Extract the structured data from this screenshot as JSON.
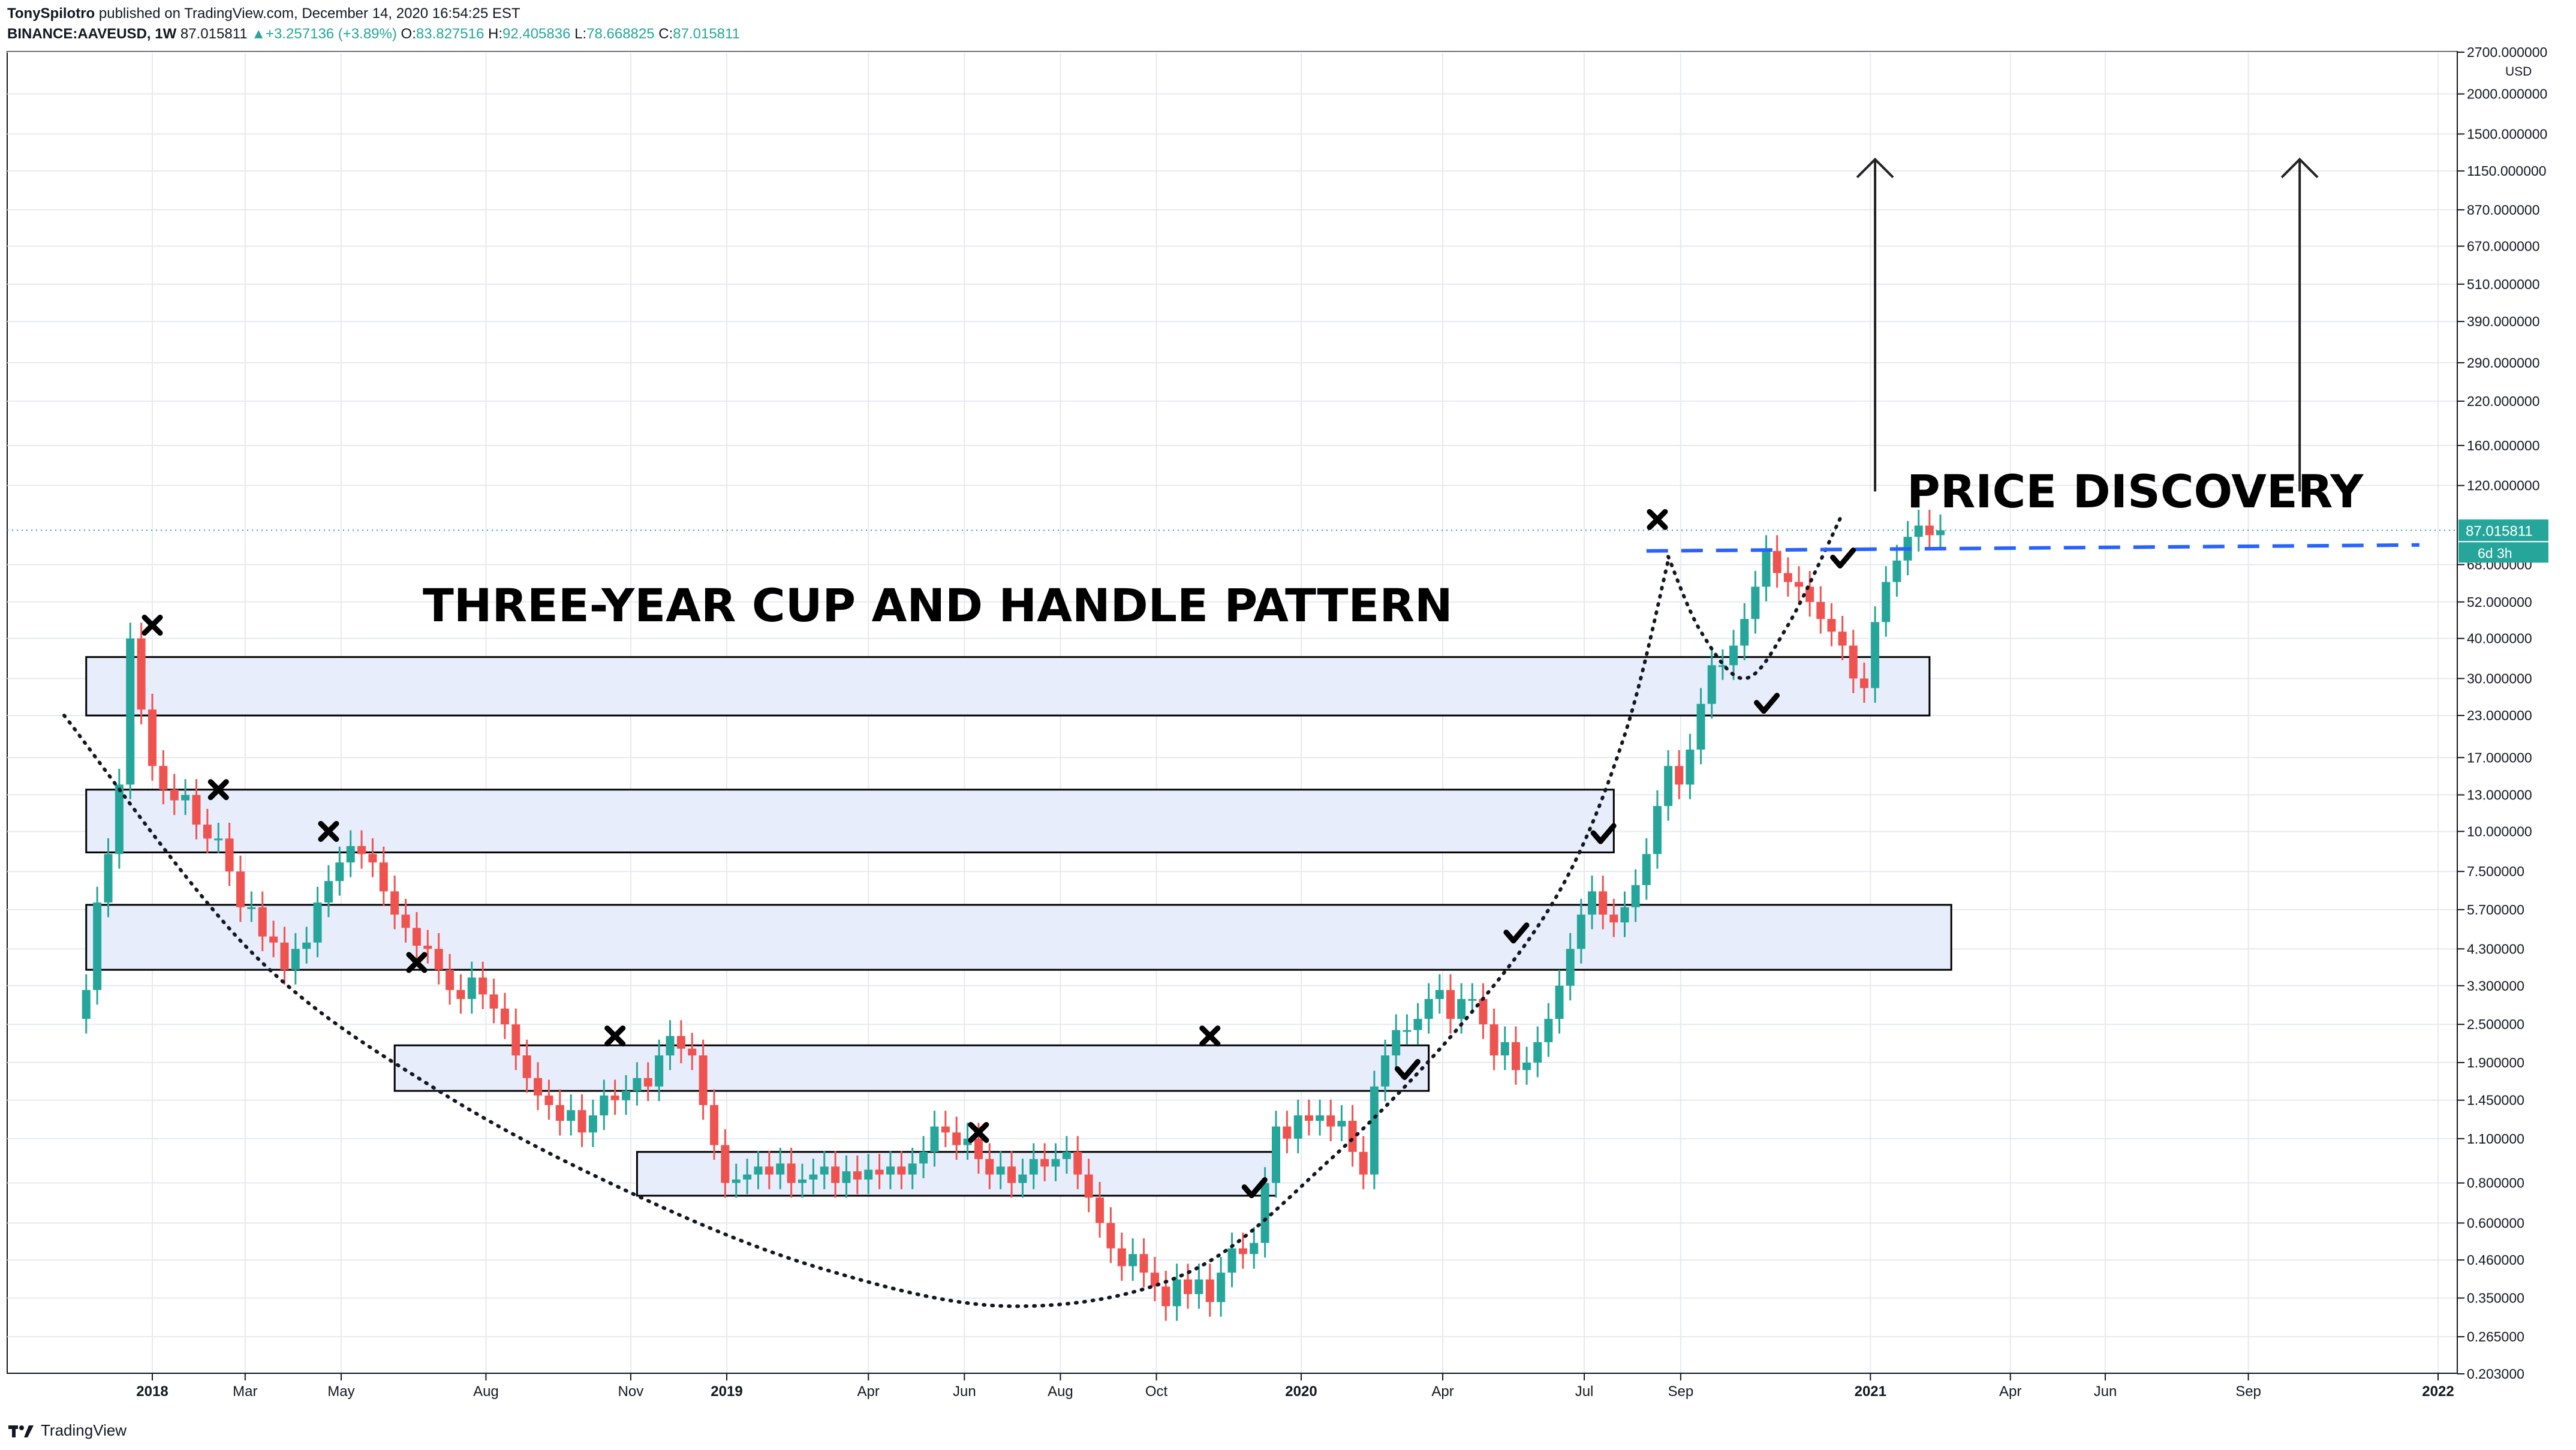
{
  "header": {
    "author": "TonySpilotro",
    "published": "published on TradingView.com, December 14, 2020 16:54:25 EST",
    "symbol": "BINANCE:AAVEUSD, 1W",
    "last": "87.015811",
    "change_arrow": "▲",
    "change": "+3.257136 (+3.89%)",
    "o_label": "O:",
    "o_value": "83.827516",
    "h_label": "H:",
    "h_value": "92.405836",
    "l_label": "L:",
    "l_value": "78.668825",
    "c_label": "C:",
    "c_value": "87.015811"
  },
  "footer": {
    "brand": "TradingView",
    "logo_icon": "tradingview-logo-icon"
  },
  "colors": {
    "up": "#26a69a",
    "down": "#ef5350",
    "zone_fill": "#e8edfb",
    "dashed": "#2962ff",
    "grid": "#e6e9f0"
  },
  "chart_data": {
    "type": "candlestick",
    "symbol": "BINANCE:AAVEUSD",
    "interval": "1W",
    "yscale": "log",
    "currency": "USD",
    "ylim": [
      0.203,
      2700
    ],
    "y_ticks": [
      "2700.000000",
      "2000.000000",
      "1500.000000",
      "1150.000000",
      "870.000000",
      "670.000000",
      "510.000000",
      "390.000000",
      "290.000000",
      "220.000000",
      "160.000000",
      "120.000000",
      "68.000000",
      "52.000000",
      "40.000000",
      "30.000000",
      "23.000000",
      "17.000000",
      "13.000000",
      "10.000000",
      "7.500000",
      "5.700000",
      "4.300000",
      "3.300000",
      "2.500000",
      "1.900000",
      "1.450000",
      "1.100000",
      "0.800000",
      "0.600000",
      "0.460000",
      "0.350000",
      "0.265000",
      "0.203000"
    ],
    "x_ticks": [
      {
        "label": "2018",
        "date": "2018-01-01",
        "bold": true
      },
      {
        "label": "Mar",
        "date": "2018-03-01"
      },
      {
        "label": "May",
        "date": "2018-05-01"
      },
      {
        "label": "Aug",
        "date": "2018-08-01"
      },
      {
        "label": "Nov",
        "date": "2018-11-01"
      },
      {
        "label": "2019",
        "date": "2019-01-01",
        "bold": true
      },
      {
        "label": "Apr",
        "date": "2019-04-01"
      },
      {
        "label": "Jun",
        "date": "2019-06-01"
      },
      {
        "label": "Aug",
        "date": "2019-08-01"
      },
      {
        "label": "Oct",
        "date": "2019-10-01"
      },
      {
        "label": "2020",
        "date": "2020-01-01",
        "bold": true
      },
      {
        "label": "Apr",
        "date": "2020-04-01"
      },
      {
        "label": "Jul",
        "date": "2020-07-01"
      },
      {
        "label": "Sep",
        "date": "2020-09-01"
      },
      {
        "label": "2021",
        "date": "2021-01-01",
        "bold": true
      },
      {
        "label": "Apr",
        "date": "2021-04-01"
      },
      {
        "label": "Jun",
        "date": "2021-06-01"
      },
      {
        "label": "Sep",
        "date": "2021-09-01"
      },
      {
        "label": "2022",
        "date": "2022-01-01",
        "bold": true
      }
    ],
    "price_label": "87.015811",
    "countdown_label": "6d 3h",
    "annotations": {
      "title": "THREE-YEAR CUP AND HANDLE PATTERN",
      "subtitle": "PRICE DISCOVERY"
    },
    "zones": [
      {
        "low": 23,
        "high": 35,
        "from": "2017-11-20",
        "to": "2021-02-08"
      },
      {
        "low": 8.6,
        "high": 13.5,
        "from": "2017-11-20",
        "to": "2020-07-20"
      },
      {
        "low": 3.7,
        "high": 5.9,
        "from": "2017-11-20",
        "to": "2021-02-22"
      },
      {
        "low": 1.55,
        "high": 2.15,
        "from": "2018-06-04",
        "to": "2020-03-23"
      },
      {
        "low": 0.73,
        "high": 1.0,
        "from": "2018-11-05",
        "to": "2019-12-16"
      }
    ],
    "resistance_level": {
      "value": 75,
      "from": "2020-08-10",
      "to": "2021-12-20"
    },
    "crosses": [
      {
        "date": "2018-01-01",
        "price": 44
      },
      {
        "date": "2018-02-12",
        "price": 13.5
      },
      {
        "date": "2018-04-23",
        "price": 10
      },
      {
        "date": "2018-06-18",
        "price": 3.9
      },
      {
        "date": "2018-10-22",
        "price": 2.3
      },
      {
        "date": "2019-06-10",
        "price": 1.15
      },
      {
        "date": "2019-11-04",
        "price": 2.3
      },
      {
        "date": "2020-08-17",
        "price": 94
      }
    ],
    "checks": [
      {
        "date": "2019-12-02",
        "price": 0.77
      },
      {
        "date": "2020-03-09",
        "price": 1.8
      },
      {
        "date": "2020-05-18",
        "price": 4.8
      },
      {
        "date": "2020-07-13",
        "price": 9.8
      },
      {
        "date": "2020-10-26",
        "price": 25
      },
      {
        "date": "2020-12-14",
        "price": 71
      }
    ],
    "cup_curve_points": [
      {
        "date": "2017-11-06",
        "price": 23
      },
      {
        "date": "2018-03-05",
        "price": 4.2
      },
      {
        "date": "2018-07-02",
        "price": 1.55
      },
      {
        "date": "2018-11-05",
        "price": 0.73
      },
      {
        "date": "2019-03-04",
        "price": 0.43
      },
      {
        "date": "2019-07-01",
        "price": 0.33
      },
      {
        "date": "2019-10-21",
        "price": 0.42
      },
      {
        "date": "2020-01-20",
        "price": 0.95
      },
      {
        "date": "2020-04-13",
        "price": 2.5
      },
      {
        "date": "2020-06-15",
        "price": 6.5
      },
      {
        "date": "2020-07-27",
        "price": 20
      },
      {
        "date": "2020-08-24",
        "price": 70
      }
    ],
    "handle_curve_points": [
      {
        "date": "2020-08-24",
        "price": 72
      },
      {
        "date": "2020-09-14",
        "price": 42
      },
      {
        "date": "2020-10-12",
        "price": 30
      },
      {
        "date": "2020-11-09",
        "price": 44
      },
      {
        "date": "2020-12-14",
        "price": 98
      }
    ],
    "targets": [
      {
        "date": "2021-01-04",
        "from": 115,
        "to": 1250
      },
      {
        "date": "2021-10-04",
        "from": 115,
        "to": 1250
      }
    ],
    "candles_weekly": {
      "start": "2017-11-20",
      "o": [
        2.6,
        3.2,
        6.0,
        8.5,
        14,
        40,
        24,
        16,
        13.5,
        12.5,
        13,
        10.5,
        9.5,
        9.5,
        7.5,
        5.8,
        5.8,
        4.7,
        4.5,
        3.7,
        4.3,
        4.5,
        6.0,
        7.0,
        8.0,
        9.0,
        8.5,
        8.0,
        6.5,
        5.5,
        5.0,
        4.4,
        4.3,
        3.7,
        3.2,
        3.0,
        3.5,
        3.1,
        2.8,
        2.5,
        2.0,
        1.7,
        1.5,
        1.4,
        1.25,
        1.35,
        1.15,
        1.3,
        1.5,
        1.45,
        1.55,
        1.7,
        1.6,
        2.0,
        2.3,
        2.1,
        2.0,
        1.4,
        1.05,
        0.8,
        0.82,
        0.85,
        0.9,
        0.85,
        0.92,
        0.8,
        0.82,
        0.85,
        0.9,
        0.8,
        0.87,
        0.82,
        0.88,
        0.85,
        0.9,
        0.85,
        0.92,
        1.0,
        1.2,
        1.15,
        1.05,
        1.1,
        0.95,
        0.85,
        0.9,
        0.8,
        0.85,
        0.95,
        0.9,
        0.95,
        1.0,
        0.85,
        0.72,
        0.6,
        0.5,
        0.44,
        0.48,
        0.42,
        0.38,
        0.33,
        0.4,
        0.36,
        0.4,
        0.34,
        0.42,
        0.5,
        0.48,
        0.52,
        0.8,
        1.2,
        1.1,
        1.3,
        1.25,
        1.3,
        1.2,
        1.25,
        1.0,
        0.85,
        1.6,
        2.0,
        2.4,
        2.4,
        2.6,
        3.0,
        3.2,
        2.6,
        3.0,
        3.0,
        2.5,
        2.0,
        2.2,
        1.8,
        1.9,
        2.2,
        2.6,
        3.3,
        4.3,
        5.5,
        6.5,
        5.5,
        5.2,
        5.8,
        6.8,
        8.5,
        12,
        16,
        14,
        18,
        25,
        33,
        33,
        38,
        46,
        58,
        75,
        64,
        60,
        58,
        52,
        46,
        42,
        38,
        30,
        28,
        45,
        60,
        70,
        83,
        90,
        84
      ],
      "c": [
        3.2,
        6.0,
        8.5,
        14,
        40,
        24,
        16,
        13.5,
        12.5,
        13,
        10.5,
        9.5,
        9.5,
        7.5,
        5.8,
        5.8,
        4.7,
        4.5,
        3.7,
        4.3,
        4.5,
        6.0,
        7.0,
        8.0,
        9.0,
        8.5,
        8.0,
        6.5,
        5.5,
        5.0,
        4.4,
        4.3,
        3.7,
        3.2,
        3.0,
        3.5,
        3.1,
        2.8,
        2.5,
        2.0,
        1.7,
        1.5,
        1.4,
        1.25,
        1.35,
        1.15,
        1.3,
        1.5,
        1.45,
        1.55,
        1.7,
        1.6,
        2.0,
        2.3,
        2.1,
        2.0,
        1.4,
        1.05,
        0.8,
        0.82,
        0.85,
        0.9,
        0.85,
        0.92,
        0.8,
        0.82,
        0.85,
        0.9,
        0.8,
        0.87,
        0.82,
        0.88,
        0.85,
        0.9,
        0.85,
        0.92,
        1.0,
        1.2,
        1.15,
        1.05,
        1.1,
        0.95,
        0.85,
        0.9,
        0.8,
        0.85,
        0.95,
        0.9,
        0.95,
        1.0,
        0.85,
        0.72,
        0.6,
        0.5,
        0.44,
        0.48,
        0.42,
        0.38,
        0.33,
        0.4,
        0.36,
        0.4,
        0.34,
        0.42,
        0.5,
        0.48,
        0.52,
        0.8,
        1.2,
        1.1,
        1.3,
        1.25,
        1.3,
        1.2,
        1.25,
        1.0,
        0.85,
        1.6,
        2.0,
        2.4,
        2.4,
        2.6,
        3.0,
        3.2,
        2.6,
        3.0,
        3.0,
        2.5,
        2.0,
        2.2,
        1.8,
        1.9,
        2.2,
        2.6,
        3.3,
        4.3,
        5.5,
        6.5,
        5.5,
        5.2,
        5.8,
        6.8,
        8.5,
        12,
        16,
        14,
        18,
        25,
        33,
        33,
        38,
        46,
        58,
        75,
        64,
        60,
        58,
        52,
        46,
        42,
        38,
        30,
        28,
        45,
        60,
        70,
        83,
        90,
        84,
        87
      ]
    }
  }
}
